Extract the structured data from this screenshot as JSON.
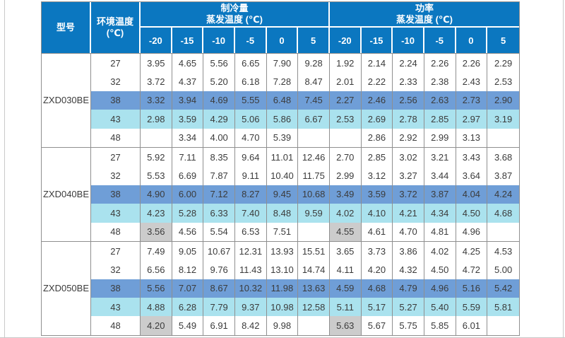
{
  "table": {
    "colors": {
      "header_bg": "#0b77c0",
      "row_blue": "#6f9ed7",
      "row_cyan": "#aae2ee",
      "gray_cell": "#cccccc",
      "grid_line": "#8f8f8f"
    },
    "header": {
      "model": "型号",
      "ambient_line1": "环境温度",
      "ambient_line2": "(℃)",
      "cooling_title": "制冷量",
      "cooling_subtitle": "蒸发温度 (℃)",
      "power_title": "功率",
      "power_subtitle": "蒸发温度 (℃)",
      "evap_temps": [
        "-20",
        "-15",
        "-10",
        "-5",
        "0",
        "5"
      ]
    },
    "groups": [
      {
        "model": "ZXD030BE",
        "rows": [
          {
            "ambient": "27",
            "highlight": "none",
            "gray_first": false,
            "cooling": [
              "3.95",
              "4.65",
              "5.56",
              "6.65",
              "7.90",
              "9.28"
            ],
            "power": [
              "1.92",
              "2.14",
              "2.24",
              "2.26",
              "2.26",
              "2.29"
            ]
          },
          {
            "ambient": "32",
            "highlight": "none",
            "gray_first": false,
            "cooling": [
              "3.72",
              "4.37",
              "5.20",
              "6.18",
              "7.28",
              "8.47"
            ],
            "power": [
              "2.01",
              "2.22",
              "2.33",
              "2.38",
              "2.43",
              "2.53"
            ]
          },
          {
            "ambient": "38",
            "highlight": "blue",
            "gray_first": false,
            "cooling": [
              "3.32",
              "3.94",
              "4.69",
              "5.55",
              "6.48",
              "7.45"
            ],
            "power": [
              "2.27",
              "2.46",
              "2.56",
              "2.63",
              "2.73",
              "2.90"
            ]
          },
          {
            "ambient": "43",
            "highlight": "cyan",
            "gray_first": false,
            "cooling": [
              "2.98",
              "3.59",
              "4.29",
              "5.06",
              "5.86",
              "6.67"
            ],
            "power": [
              "2.53",
              "2.69",
              "2.78",
              "2.85",
              "2.97",
              "3.19"
            ]
          },
          {
            "ambient": "48",
            "highlight": "none",
            "gray_first": false,
            "cooling": [
              "",
              "3.34",
              "4.00",
              "4.70",
              "5.39",
              ""
            ],
            "power": [
              "",
              "2.86",
              "2.92",
              "2.99",
              "3.13",
              ""
            ]
          }
        ]
      },
      {
        "model": "ZXD040BE",
        "rows": [
          {
            "ambient": "27",
            "highlight": "none",
            "gray_first": false,
            "cooling": [
              "5.92",
              "7.11",
              "8.35",
              "9.64",
              "11.01",
              "12.46"
            ],
            "power": [
              "2.70",
              "2.85",
              "3.02",
              "3.21",
              "3.43",
              "3.68"
            ]
          },
          {
            "ambient": "32",
            "highlight": "none",
            "gray_first": false,
            "cooling": [
              "5.53",
              "6.69",
              "7.87",
              "9.11",
              "10.40",
              "11.75"
            ],
            "power": [
              "2.99",
              "3.12",
              "3.27",
              "3.44",
              "3.64",
              "3.87"
            ]
          },
          {
            "ambient": "38",
            "highlight": "blue",
            "gray_first": false,
            "cooling": [
              "4.90",
              "6.00",
              "7.12",
              "8.27",
              "9.45",
              "10.68"
            ],
            "power": [
              "3.49",
              "3.59",
              "3.72",
              "3.87",
              "4.04",
              "4.24"
            ]
          },
          {
            "ambient": "43",
            "highlight": "cyan",
            "gray_first": false,
            "cooling": [
              "4.23",
              "5.28",
              "6.33",
              "7.40",
              "8.48",
              "9.59"
            ],
            "power": [
              "4.02",
              "4.10",
              "4.21",
              "4.34",
              "4.50",
              "4.68"
            ]
          },
          {
            "ambient": "48",
            "highlight": "none",
            "gray_first": true,
            "cooling": [
              "3.56",
              "4.56",
              "5.54",
              "6.53",
              "7.51",
              ""
            ],
            "power": [
              "4.55",
              "4.61",
              "4.70",
              "4.81",
              "4.96",
              ""
            ]
          }
        ]
      },
      {
        "model": "ZXD050BE",
        "rows": [
          {
            "ambient": "27",
            "highlight": "none",
            "gray_first": false,
            "cooling": [
              "7.49",
              "9.05",
              "10.67",
              "12.31",
              "13.93",
              "15.51"
            ],
            "power": [
              "3.65",
              "3.73",
              "3.86",
              "4.02",
              "4.25",
              "4.53"
            ]
          },
          {
            "ambient": "32",
            "highlight": "none",
            "gray_first": false,
            "cooling": [
              "6.56",
              "8.12",
              "9.76",
              "11.43",
              "13.10",
              "14.74"
            ],
            "power": [
              "4.11",
              "4.20",
              "4.32",
              "4.50",
              "4.72",
              "5.00"
            ]
          },
          {
            "ambient": "38",
            "highlight": "blue",
            "gray_first": false,
            "cooling": [
              "5.56",
              "7.07",
              "8.67",
              "10.32",
              "11.98",
              "13.63"
            ],
            "power": [
              "4.59",
              "4.68",
              "4.79",
              "4.96",
              "5.16",
              "5.42"
            ]
          },
          {
            "ambient": "43",
            "highlight": "cyan",
            "gray_first": false,
            "cooling": [
              "4.88",
              "6.28",
              "7.79",
              "9.37",
              "10.98",
              "12.58"
            ],
            "power": [
              "5.11",
              "5.17",
              "5.27",
              "5.40",
              "5.59",
              "5.81"
            ]
          },
          {
            "ambient": "48",
            "highlight": "none",
            "gray_first": true,
            "cooling": [
              "4.20",
              "5.49",
              "6.91",
              "8.42",
              "9.98",
              ""
            ],
            "power": [
              "5.63",
              "5.67",
              "5.75",
              "5.85",
              "6.01",
              ""
            ]
          }
        ]
      }
    ]
  }
}
